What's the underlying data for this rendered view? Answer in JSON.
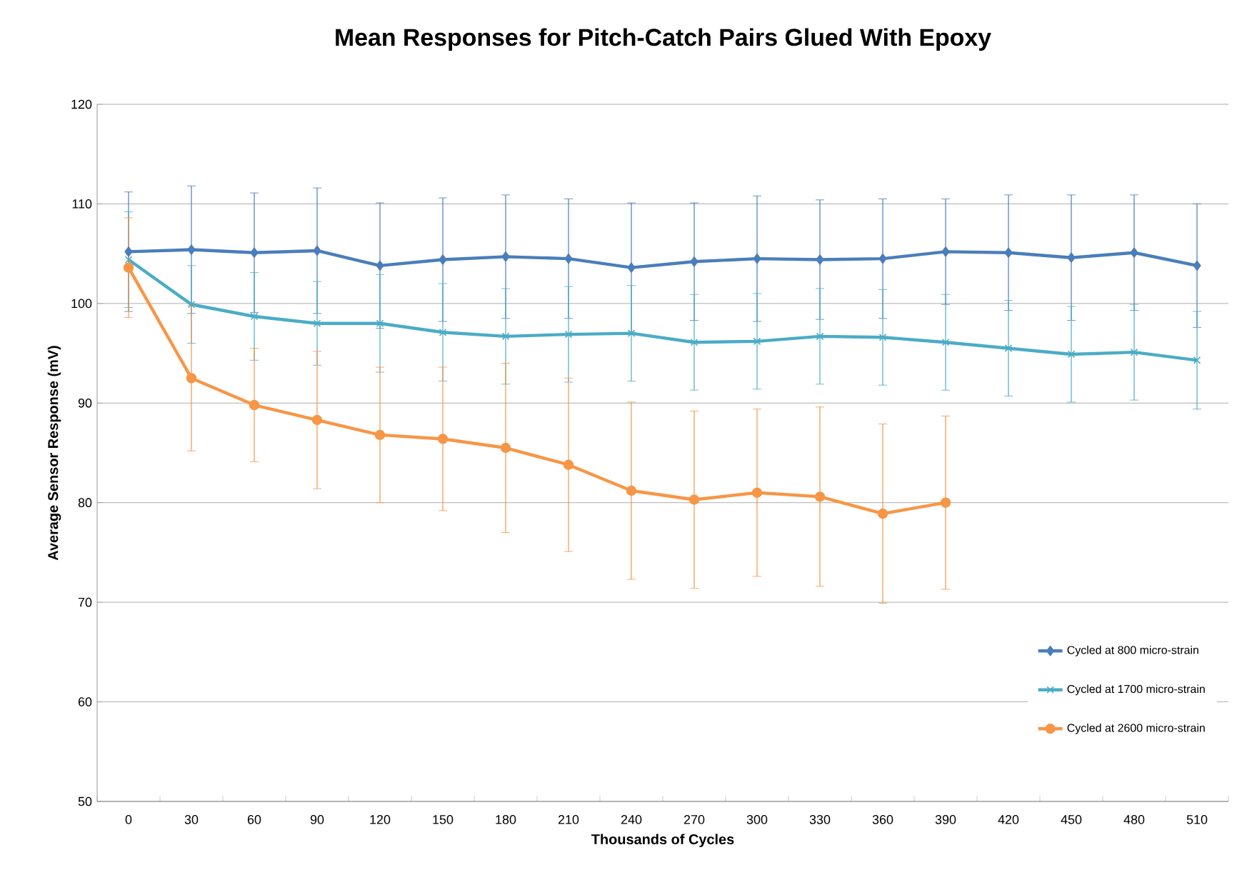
{
  "chart_data": {
    "type": "line",
    "title": "Mean Responses for Pitch-Catch Pairs Glued With Epoxy",
    "xlabel": "Thousands of Cycles",
    "ylabel": "Average Sensor Response (mV)",
    "categories": [
      "0",
      "30",
      "60",
      "90",
      "120",
      "150",
      "180",
      "210",
      "240",
      "270",
      "300",
      "330",
      "360",
      "390",
      "420",
      "450",
      "480",
      "510"
    ],
    "ylim": [
      50,
      120
    ],
    "yticks": [
      50,
      60,
      70,
      80,
      90,
      100,
      110,
      120
    ],
    "grid": "y",
    "legend": "bottom right",
    "series": [
      {
        "name": "Cycled at 800 micro-strain",
        "color": "#4a7ebb",
        "marker": "diamond",
        "values": [
          105.2,
          105.4,
          105.1,
          105.3,
          103.8,
          104.4,
          104.7,
          104.5,
          103.6,
          104.2,
          104.5,
          104.4,
          104.5,
          105.2,
          105.1,
          104.6,
          105.1,
          103.8
        ],
        "errors": [
          6.0,
          6.4,
          6.0,
          6.3,
          6.3,
          6.2,
          6.2,
          6.0,
          6.5,
          5.9,
          6.3,
          6.0,
          6.0,
          5.3,
          5.8,
          6.3,
          5.8,
          6.2
        ]
      },
      {
        "name": "Cycled at 1700 micro-strain",
        "color": "#4bacc6",
        "marker": "cross",
        "values": [
          104.4,
          99.9,
          98.7,
          98.0,
          98.0,
          97.1,
          96.7,
          96.9,
          97.0,
          96.1,
          96.2,
          96.7,
          96.6,
          96.1,
          95.5,
          94.9,
          95.1,
          94.3
        ],
        "errors": [
          4.8,
          3.9,
          4.4,
          4.2,
          4.9,
          4.9,
          4.8,
          4.8,
          4.8,
          4.8,
          4.8,
          4.8,
          4.8,
          4.8,
          4.8,
          4.8,
          4.8,
          4.9
        ]
      },
      {
        "name": "Cycled at 2600 micro-strain",
        "color": "#f79646",
        "marker": "circle",
        "values": [
          103.6,
          92.5,
          89.8,
          88.3,
          86.8,
          86.4,
          85.5,
          83.8,
          81.2,
          80.3,
          81.0,
          80.6,
          78.9,
          80.0,
          null,
          null,
          null,
          null
        ],
        "errors": [
          5.0,
          7.3,
          5.7,
          6.9,
          6.8,
          7.2,
          8.5,
          8.7,
          8.9,
          8.9,
          8.4,
          9.0,
          9.0,
          8.7,
          null,
          null,
          null,
          null
        ]
      }
    ]
  }
}
